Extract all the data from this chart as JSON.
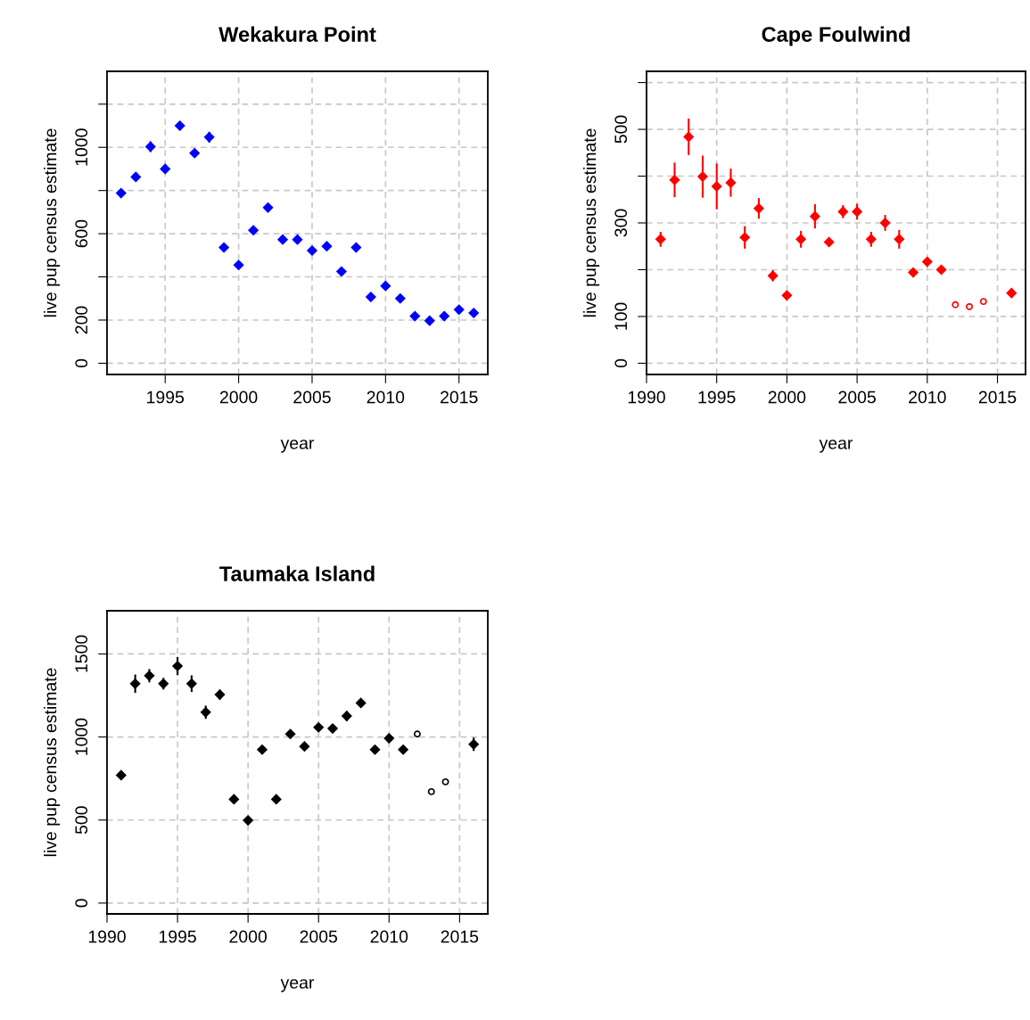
{
  "chart_data": [
    {
      "type": "scatter",
      "title": "Wekakura Point",
      "xlabel": "year",
      "ylabel": "live pup census estimate",
      "xlim": [
        1991.04,
        2016.96
      ],
      "ylim": [
        -52,
        1352
      ],
      "xticks": [
        1995,
        2000,
        2005,
        2010,
        2015
      ],
      "yticks": [
        0,
        200,
        {
          "value": 400,
          "label": null
        },
        600,
        {
          "value": 800,
          "label": null
        },
        1000,
        {
          "value": 1200,
          "label": null
        }
      ],
      "grid": true,
      "series": [
        {
          "color": "#0000ff",
          "marker": "diamond",
          "x": [
            1992,
            1993,
            1994,
            1995,
            1996,
            1997,
            1998,
            1999,
            2000,
            2001,
            2002,
            2003,
            2004,
            2005,
            2006,
            2007,
            2008,
            2009,
            2010,
            2011,
            2012,
            2013,
            2014,
            2015,
            2016
          ],
          "values": [
            788,
            863,
            1003,
            900,
            1100,
            973,
            1047,
            536,
            455,
            616,
            721,
            573,
            573,
            522,
            542,
            425,
            536,
            307,
            358,
            300,
            218,
            197,
            218,
            248,
            233
          ],
          "errors": [
            10,
            15,
            25,
            20,
            20,
            15,
            25,
            15,
            10,
            20,
            12,
            15,
            15,
            15,
            12,
            10,
            12,
            15,
            15,
            12,
            8,
            8,
            8,
            8,
            8
          ]
        }
      ]
    },
    {
      "type": "scatter",
      "title": "Cape Foulwind",
      "xlabel": "year",
      "ylabel": "live pup census estimate",
      "xlim": [
        1990,
        2017
      ],
      "ylim": [
        -24,
        624
      ],
      "xticks": [
        1990,
        1995,
        2000,
        2005,
        2010,
        2015
      ],
      "yticks": [
        0,
        100,
        {
          "value": 200,
          "label": null
        },
        300,
        {
          "value": 400,
          "label": null
        },
        500,
        {
          "value": 600,
          "label": null
        }
      ],
      "grid": true,
      "series": [
        {
          "color": "#ff0000",
          "marker": "diamond",
          "x": [
            1991,
            1992,
            1993,
            1994,
            1995,
            1996,
            1997,
            1998,
            1999,
            2000,
            2001,
            2002,
            2003,
            2004,
            2005,
            2006,
            2007,
            2008,
            2009,
            2010,
            2011,
            2016
          ],
          "values": [
            265,
            392,
            484,
            399,
            378,
            386,
            269,
            331,
            187,
            145,
            265,
            314,
            259,
            324,
            324,
            265,
            300,
            265,
            194,
            217,
            200,
            150
          ],
          "errors": [
            16,
            37,
            39,
            45,
            49,
            30,
            24,
            22,
            12,
            8,
            18,
            26,
            10,
            14,
            17,
            16,
            17,
            20,
            8,
            8,
            6,
            10
          ]
        },
        {
          "color": "#ff0000",
          "marker": "circle",
          "x": [
            2012,
            2013,
            2014
          ],
          "values": [
            125,
            121,
            132
          ]
        }
      ]
    },
    {
      "type": "scatter",
      "title": "Taumaka Island",
      "xlabel": "year",
      "ylabel": "live pup census estimate",
      "xlim": [
        1990,
        2017
      ],
      "ylim": [
        -65,
        1760
      ],
      "xticks": [
        1990,
        1995,
        2000,
        2005,
        2010,
        2015
      ],
      "yticks": [
        0,
        500,
        1000,
        1500
      ],
      "grid": true,
      "series": [
        {
          "color": "#000000",
          "marker": "diamond",
          "x": [
            1991,
            1992,
            1993,
            1994,
            1995,
            1996,
            1997,
            1998,
            1999,
            2000,
            2001,
            2002,
            2003,
            2004,
            2005,
            2006,
            2007,
            2008,
            2009,
            2010,
            2011,
            2016
          ],
          "values": [
            770,
            1321,
            1369,
            1321,
            1427,
            1321,
            1149,
            1255,
            625,
            498,
            924,
            625,
            1018,
            943,
            1058,
            1051,
            1126,
            1205,
            924,
            992,
            924,
            956
          ],
          "errors": [
            15,
            55,
            40,
            35,
            55,
            50,
            40,
            30,
            10,
            10,
            20,
            15,
            20,
            20,
            20,
            20,
            30,
            15,
            15,
            15,
            15,
            40
          ]
        },
        {
          "color": "#000000",
          "marker": "circle",
          "x": [
            2012,
            2013,
            2014
          ],
          "values": [
            1018,
            671,
            730
          ]
        }
      ]
    }
  ]
}
